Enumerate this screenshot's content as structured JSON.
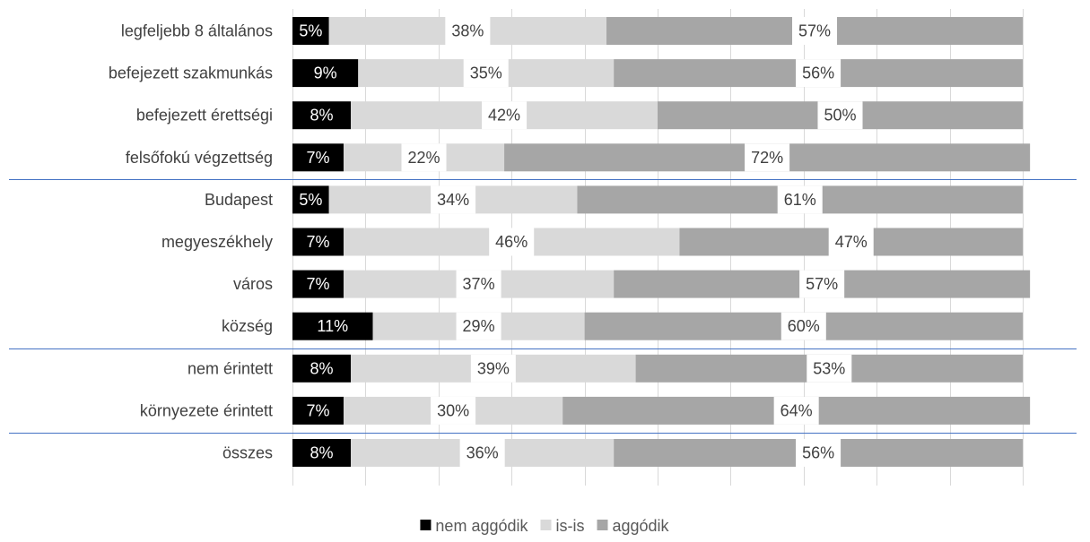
{
  "chart_data": {
    "type": "bar",
    "orientation": "horizontal",
    "stacked": true,
    "percent_stacked": true,
    "title": "",
    "xlabel": "",
    "ylabel": "",
    "xlim": [
      0,
      100
    ],
    "grid": true,
    "legend_position": "bottom",
    "categories": [
      "legfeljebb 8 általános",
      "befejezett szakmunkás",
      "befejezett érettségi",
      "felsőfokú végzettség",
      "Budapest",
      "megyeszékhely",
      "város",
      "község",
      "nem érintett",
      "környezete érintett",
      "összes"
    ],
    "group_separators_after": [
      3,
      7,
      9
    ],
    "series": [
      {
        "name": "nem aggódik",
        "color": "#000000",
        "label_color": "#ffffff",
        "values": [
          5,
          9,
          8,
          7,
          5,
          7,
          7,
          11,
          8,
          7,
          8
        ],
        "labels": [
          "5%",
          "9%",
          "8%",
          "7%",
          "5%",
          "7%",
          "7%",
          "11%",
          "8%",
          "7%",
          "8%"
        ]
      },
      {
        "name": "is-is",
        "color": "#d9d9d9",
        "label_color": "#404040",
        "values": [
          38,
          35,
          42,
          22,
          34,
          46,
          37,
          29,
          39,
          30,
          36
        ],
        "labels": [
          "38%",
          "35%",
          "42%",
          "22%",
          "34%",
          "46%",
          "37%",
          "29%",
          "39%",
          "30%",
          "36%"
        ]
      },
      {
        "name": "aggódik",
        "color": "#a6a6a6",
        "label_color": "#404040",
        "values": [
          57,
          56,
          50,
          72,
          61,
          47,
          57,
          60,
          53,
          64,
          56
        ],
        "labels": [
          "57%",
          "56%",
          "50%",
          "72%",
          "61%",
          "47%",
          "57%",
          "60%",
          "53%",
          "64%",
          "56%"
        ]
      }
    ]
  }
}
